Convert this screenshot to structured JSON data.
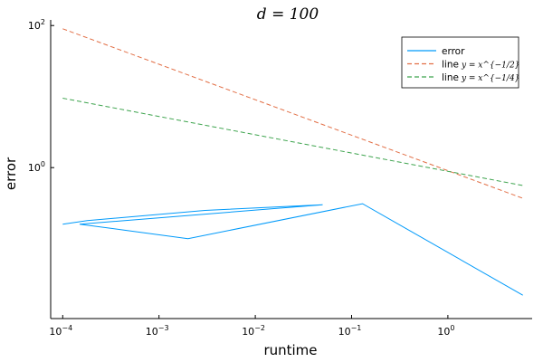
{
  "chart_data": {
    "type": "line",
    "title": "d = 100",
    "xlabel": "runtime",
    "ylabel": "error",
    "xscale": "log",
    "yscale": "log",
    "xlim": [
      7.5e-05,
      7.5
    ],
    "ylim": [
      0.0075,
      120
    ],
    "grid": false,
    "legend_position": "top-right",
    "xticks": [
      {
        "value": 0.0001,
        "base": "10",
        "exp": "−4"
      },
      {
        "value": 0.001,
        "base": "10",
        "exp": "−3"
      },
      {
        "value": 0.01,
        "base": "10",
        "exp": "−2"
      },
      {
        "value": 0.1,
        "base": "10",
        "exp": "−1"
      },
      {
        "value": 1,
        "base": "10",
        "exp": "0"
      }
    ],
    "yticks": [
      {
        "value": 1,
        "base": "10",
        "exp": "0"
      },
      {
        "value": 100,
        "base": "10",
        "exp": "2"
      }
    ],
    "series": [
      {
        "name": "error",
        "color": "#009AFA",
        "style": "solid",
        "x": [
          0.0001,
          0.00018,
          0.003,
          0.05,
          0.00015,
          0.002,
          0.13,
          6.0
        ],
        "y": [
          0.16,
          0.18,
          0.25,
          0.3,
          0.16,
          0.1,
          0.31,
          0.016
        ]
      },
      {
        "name": "line",
        "color": "#E26F46",
        "style": "dash",
        "math": "y = x^{−1/2}",
        "x": [
          0.0001,
          6.0
        ],
        "y": [
          90,
          0.37
        ]
      },
      {
        "name": "line",
        "color": "#3EA44E",
        "style": "dash",
        "math": "y = x^{−1/4}",
        "x": [
          0.0001,
          6.0
        ],
        "y": [
          9.5,
          0.56
        ]
      }
    ]
  }
}
